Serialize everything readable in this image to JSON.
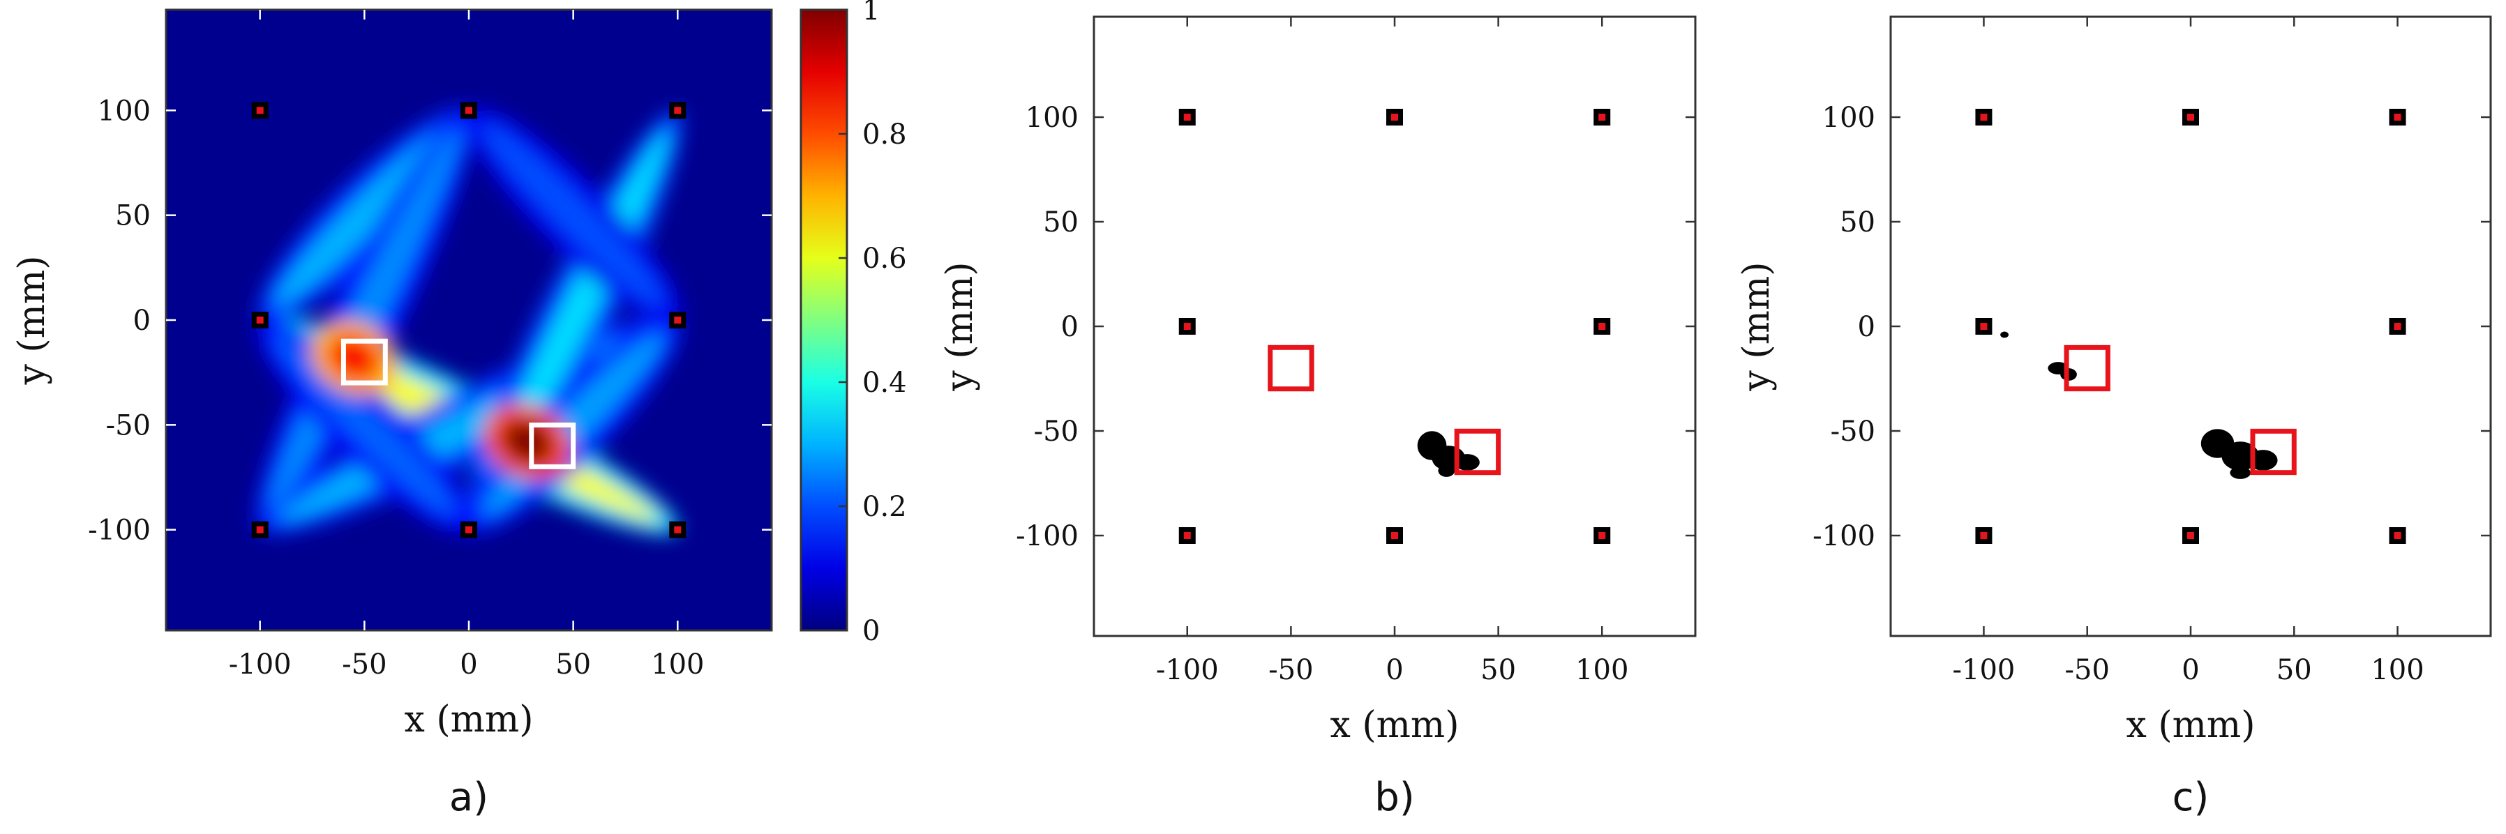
{
  "chart_data": [
    {
      "type": "heatmap",
      "panel_label": "a)",
      "xlabel": "x (mm)",
      "ylabel": "y (mm)",
      "xlim": [
        -145,
        145
      ],
      "ylim": [
        -148,
        148
      ],
      "xticks": [
        -100,
        -50,
        0,
        50,
        100
      ],
      "yticks": [
        -100,
        -50,
        0,
        50,
        100
      ],
      "xtick_labels": [
        "-100",
        "-50",
        "0",
        "50",
        "100"
      ],
      "ytick_labels": [
        "-100",
        "-50",
        "0",
        "50",
        "100"
      ],
      "colormap": "jet",
      "background": "#00008f",
      "colorbar": {
        "ticks": [
          0,
          0.2,
          0.4,
          0.6,
          0.8,
          1
        ],
        "labels": [
          "0",
          "0.2",
          "0.4",
          "0.6",
          "0.8",
          "1"
        ]
      },
      "sensors": [
        [
          -100,
          100
        ],
        [
          0,
          100
        ],
        [
          100,
          100
        ],
        [
          -100,
          0
        ],
        [
          100,
          0
        ],
        [
          -100,
          -100
        ],
        [
          0,
          -100
        ],
        [
          100,
          -100
        ]
      ],
      "target_boxes": [
        {
          "x": -50,
          "y": -20,
          "size": 20,
          "color": "#ffffff"
        },
        {
          "x": 40,
          "y": -60,
          "size": 20,
          "color": "#ffffff"
        }
      ],
      "paths": [
        {
          "from": [
            -100,
            0
          ],
          "to": [
            100,
            -100
          ],
          "value": 0.62
        },
        {
          "from": [
            -100,
            0
          ],
          "to": [
            0,
            100
          ],
          "value": 0.3
        },
        {
          "from": [
            -100,
            -100
          ],
          "to": [
            0,
            100
          ],
          "value": 0.26
        },
        {
          "from": [
            -100,
            -100
          ],
          "to": [
            100,
            0
          ],
          "value": 0.3
        },
        {
          "from": [
            0,
            -100
          ],
          "to": [
            100,
            100
          ],
          "value": 0.34
        },
        {
          "from": [
            0,
            -100
          ],
          "to": [
            100,
            0
          ],
          "value": 0.28
        },
        {
          "from": [
            -100,
            0
          ],
          "to": [
            0,
            -100
          ],
          "value": 0.22
        },
        {
          "from": [
            0,
            100
          ],
          "to": [
            100,
            0
          ],
          "value": 0.2
        }
      ],
      "hotspots": [
        {
          "x": -55,
          "y": -18,
          "value": 0.88
        },
        {
          "x": 28,
          "y": -58,
          "value": 1.0
        }
      ]
    },
    {
      "type": "scatter",
      "panel_label": "b)",
      "xlabel": "x (mm)",
      "ylabel": "y (mm)",
      "xlim": [
        -145,
        145
      ],
      "ylim": [
        -148,
        148
      ],
      "xticks": [
        -100,
        -50,
        0,
        50,
        100
      ],
      "yticks": [
        -100,
        -50,
        0,
        50,
        100
      ],
      "xtick_labels": [
        "-100",
        "-50",
        "0",
        "50",
        "100"
      ],
      "ytick_labels": [
        "-100",
        "-50",
        "0",
        "50",
        "100"
      ],
      "sensors": [
        [
          -100,
          100
        ],
        [
          0,
          100
        ],
        [
          100,
          100
        ],
        [
          -100,
          0
        ],
        [
          100,
          0
        ],
        [
          -100,
          -100
        ],
        [
          0,
          -100
        ],
        [
          100,
          -100
        ]
      ],
      "target_boxes": [
        {
          "x": -50,
          "y": -20,
          "size": 20,
          "color": "#e8141b"
        },
        {
          "x": 40,
          "y": -60,
          "size": 20,
          "color": "#e8141b"
        }
      ],
      "detections": [
        {
          "x": 18,
          "y": -57,
          "rx": 7,
          "ry": 7
        },
        {
          "x": 26,
          "y": -63,
          "rx": 8,
          "ry": 6
        },
        {
          "x": 35,
          "y": -65,
          "rx": 6,
          "ry": 4
        },
        {
          "x": 25,
          "y": -69,
          "rx": 4,
          "ry": 3
        }
      ]
    },
    {
      "type": "scatter",
      "panel_label": "c)",
      "xlabel": "x (mm)",
      "ylabel": "y (mm)",
      "xlim": [
        -145,
        145
      ],
      "ylim": [
        -148,
        148
      ],
      "xticks": [
        -100,
        -50,
        0,
        50,
        100
      ],
      "yticks": [
        -100,
        -50,
        0,
        50,
        100
      ],
      "xtick_labels": [
        "-100",
        "-50",
        "0",
        "50",
        "100"
      ],
      "ytick_labels": [
        "-100",
        "-50",
        "0",
        "50",
        "100"
      ],
      "sensors": [
        [
          -100,
          100
        ],
        [
          0,
          100
        ],
        [
          100,
          100
        ],
        [
          -100,
          0
        ],
        [
          100,
          0
        ],
        [
          -100,
          -100
        ],
        [
          0,
          -100
        ],
        [
          100,
          -100
        ]
      ],
      "target_boxes": [
        {
          "x": -50,
          "y": -20,
          "size": 20,
          "color": "#e8141b"
        },
        {
          "x": 40,
          "y": -60,
          "size": 20,
          "color": "#e8141b"
        }
      ],
      "detections": [
        {
          "x": -64,
          "y": -20,
          "rx": 5,
          "ry": 3
        },
        {
          "x": -59,
          "y": -23,
          "rx": 4,
          "ry": 3
        },
        {
          "x": -90,
          "y": -4,
          "rx": 2,
          "ry": 1.5
        },
        {
          "x": 13,
          "y": -56,
          "rx": 8,
          "ry": 7
        },
        {
          "x": 24,
          "y": -62,
          "rx": 9,
          "ry": 7
        },
        {
          "x": 35,
          "y": -64,
          "rx": 7,
          "ry": 5
        },
        {
          "x": 24,
          "y": -70,
          "rx": 5,
          "ry": 3
        }
      ]
    }
  ]
}
